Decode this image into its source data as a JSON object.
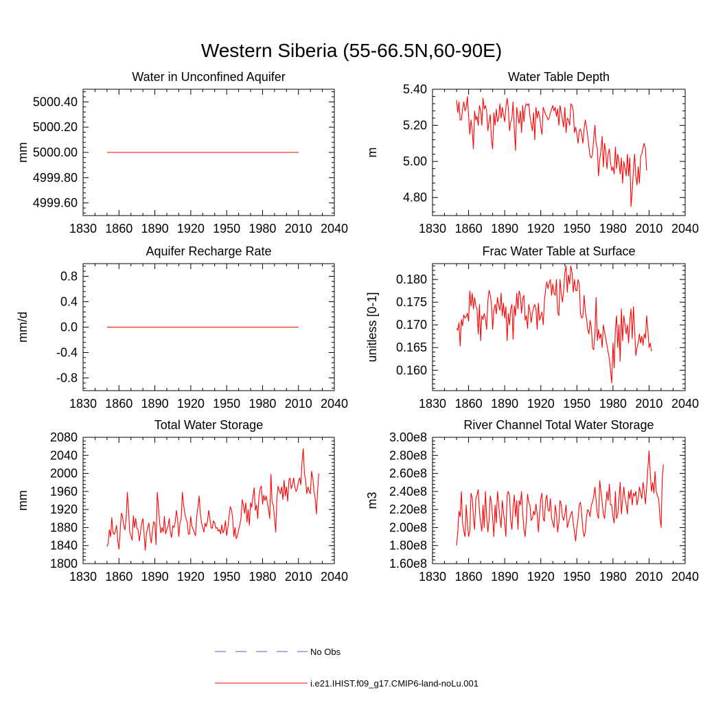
{
  "title": "Western Siberia (55-66.5N,60-90E)",
  "legend": {
    "placement": "bottom-center",
    "items": [
      {
        "label": "No Obs",
        "color": "#5555cc",
        "dash": true
      },
      {
        "label": "i.e21.IHIST.f09_g17.CMIP6-land-noLu.001",
        "color": "#ff0000",
        "dash": false
      }
    ]
  },
  "colors": {
    "series": "#ff0000",
    "obs": "#5555cc",
    "axis": "#000000"
  },
  "chart_data": [
    {
      "type": "line",
      "title": "Water in Unconfined Aquifer",
      "ylabel": "mm",
      "xlim": [
        1830,
        2040
      ],
      "ylim": [
        4999.5,
        5000.5
      ],
      "xticks": [
        1830,
        1860,
        1890,
        1920,
        1950,
        1980,
        2010,
        2040
      ],
      "xtick_labels": [
        "1830",
        "1860",
        "1890",
        "1920",
        "1950",
        "1980",
        "2010",
        "2040"
      ],
      "yticks": [
        4999.6,
        4999.8,
        5000.0,
        5000.2,
        5000.4
      ],
      "ytick_labels": [
        "4999.60",
        "4999.80",
        "5000.00",
        "5000.20",
        "5000.40"
      ],
      "series": [
        {
          "x": [
            1850,
            2010
          ],
          "y": [
            5000.0,
            5000.0
          ]
        }
      ]
    },
    {
      "type": "line",
      "title": "Water Table Depth",
      "ylabel": "m",
      "xlim": [
        1830,
        2040
      ],
      "ylim": [
        4.7,
        5.4
      ],
      "xticks": [
        1830,
        1860,
        1890,
        1920,
        1950,
        1980,
        2010,
        2040
      ],
      "xtick_labels": [
        "1830",
        "1860",
        "1890",
        "1920",
        "1950",
        "1980",
        "2010",
        "2040"
      ],
      "yticks": [
        4.8,
        5.0,
        5.2,
        5.4
      ],
      "ytick_labels": [
        "4.80",
        "5.00",
        "5.20",
        "5.40"
      ],
      "series": [
        {
          "x_start": 1850,
          "y": [
            5.34,
            5.27,
            5.33,
            5.23,
            5.23,
            5.29,
            5.33,
            5.28,
            5.3,
            5.36,
            5.25,
            5.15,
            5.23,
            5.18,
            5.07,
            5.28,
            5.23,
            5.25,
            5.2,
            5.31,
            5.28,
            5.2,
            5.35,
            5.29,
            5.31,
            5.28,
            5.17,
            5.22,
            5.26,
            5.12,
            5.07,
            5.27,
            5.2,
            5.29,
            5.22,
            5.24,
            5.32,
            5.24,
            5.3,
            5.26,
            5.22,
            5.3,
            5.35,
            5.3,
            5.17,
            5.22,
            5.24,
            5.33,
            5.18,
            5.06,
            5.3,
            5.25,
            5.21,
            5.28,
            5.16,
            5.31,
            5.22,
            5.3,
            5.32,
            5.31,
            5.32,
            5.25,
            5.21,
            5.17,
            5.27,
            5.12,
            5.3,
            5.24,
            5.28,
            5.25,
            5.19,
            5.15,
            5.3,
            5.28,
            5.26,
            5.25,
            5.23,
            5.24,
            5.27,
            5.29,
            5.31,
            5.28,
            5.3,
            5.25,
            5.29,
            5.2,
            5.31,
            5.27,
            5.23,
            5.19,
            5.3,
            5.16,
            5.24,
            5.23,
            5.2,
            5.32,
            5.31,
            5.28,
            5.16,
            5.19,
            5.15,
            5.1,
            5.17,
            5.18,
            5.15,
            5.1,
            5.18,
            5.23,
            5.19,
            5.14,
            5.08,
            5.03,
            5.02,
            5.04,
            5.13,
            5.2,
            5.1,
            5.07,
            4.92,
            5.01,
            5.06,
            5.14,
            4.97,
            5.1,
            5.05,
            4.96,
            5.04,
            5.07,
            4.99,
            4.95,
            4.97,
            4.93,
            5.08,
            4.96,
            5.04,
            5.0,
            4.93,
            5.02,
            4.88,
            5.0,
            4.96,
            4.92,
            5.04,
            4.92,
            5.02,
            4.75,
            4.84,
            4.95,
            5.04,
            4.92,
            4.87,
            4.97,
            4.88,
            5.03,
            5.04,
            5.08,
            5.1,
            5.07,
            4.95
          ]
        }
      ]
    },
    {
      "type": "line",
      "title": "Aquifer Recharge Rate",
      "ylabel": "mm/d",
      "xlim": [
        1830,
        2040
      ],
      "ylim": [
        -1.0,
        1.0
      ],
      "xticks": [
        1830,
        1860,
        1890,
        1920,
        1950,
        1980,
        2010,
        2040
      ],
      "xtick_labels": [
        "1830",
        "1860",
        "1890",
        "1920",
        "1950",
        "1980",
        "2010",
        "2040"
      ],
      "yticks": [
        -0.8,
        -0.4,
        0.0,
        0.4,
        0.8
      ],
      "ytick_labels": [
        "-0.8",
        "-0.4",
        "0.0",
        "0.4",
        "0.8"
      ],
      "series": [
        {
          "x": [
            1850,
            2010
          ],
          "y": [
            0.0,
            0.0
          ]
        }
      ]
    },
    {
      "type": "line",
      "title": "Frac Water Table at Surface",
      "ylabel": "unitless [0-1]",
      "xlim": [
        1830,
        2040
      ],
      "ylim": [
        0.1555,
        0.1835
      ],
      "xticks": [
        1830,
        1860,
        1890,
        1920,
        1950,
        1980,
        2010,
        2040
      ],
      "xtick_labels": [
        "1830",
        "1860",
        "1890",
        "1920",
        "1950",
        "1980",
        "2010",
        "2040"
      ],
      "yticks": [
        0.16,
        0.165,
        0.17,
        0.175,
        0.18
      ],
      "ytick_labels": [
        "0.160",
        "0.165",
        "0.170",
        "0.175",
        "0.180"
      ],
      "series": [
        {
          "x_start": 1850,
          "y": [
            0.1692,
            0.1688,
            0.1705,
            0.1653,
            0.1712,
            0.1698,
            0.1722,
            0.1715,
            0.1718,
            0.1726,
            0.1708,
            0.1775,
            0.1741,
            0.177,
            0.1735,
            0.176,
            0.1742,
            0.1735,
            0.168,
            0.1745,
            0.1665,
            0.172,
            0.1712,
            0.1725,
            0.1713,
            0.169,
            0.1752,
            0.1776,
            0.1765,
            0.1745,
            0.169,
            0.1732,
            0.1745,
            0.1724,
            0.176,
            0.1742,
            0.1732,
            0.177,
            0.172,
            0.1748,
            0.1715,
            0.174,
            0.1665,
            0.1725,
            0.17,
            0.1735,
            0.1745,
            0.1668,
            0.1742,
            0.172,
            0.177,
            0.1735,
            0.1775,
            0.1765,
            0.1726,
            0.1758,
            0.1765,
            0.171,
            0.172,
            0.1692,
            0.1745,
            0.173,
            0.1705,
            0.1725,
            0.1738,
            0.1745,
            0.1735,
            0.169,
            0.1748,
            0.171,
            0.172,
            0.1728,
            0.17,
            0.1752,
            0.1778,
            0.1795,
            0.178,
            0.1792,
            0.18,
            0.1765,
            0.179,
            0.177,
            0.1765,
            0.18,
            0.173,
            0.172,
            0.18,
            0.177,
            0.175,
            0.1775,
            0.1815,
            0.183,
            0.1772,
            0.181,
            0.179,
            0.183,
            0.1815,
            0.1772,
            0.18,
            0.1776,
            0.1775,
            0.18,
            0.179,
            0.1725,
            0.1715,
            0.1718,
            0.1765,
            0.173,
            0.1715,
            0.169,
            0.168,
            0.171,
            0.1695,
            0.165,
            0.1645,
            0.168,
            0.176,
            0.1665,
            0.169,
            0.167,
            0.168,
            0.165,
            0.17,
            0.1685,
            0.167,
            0.1655,
            0.164,
            0.1625,
            0.1598,
            0.1572,
            0.166,
            0.1605,
            0.169,
            0.172,
            0.165,
            0.17,
            0.162,
            0.1735,
            0.1665,
            0.172,
            0.17,
            0.168,
            0.17,
            0.166,
            0.171,
            0.1735,
            0.167,
            0.174,
            0.169,
            0.1632,
            0.165,
            0.166,
            0.168,
            0.166,
            0.1675,
            0.1655,
            0.168,
            0.167,
            0.172,
            0.169,
            0.165,
            0.166,
            0.1642
          ]
        }
      ]
    },
    {
      "type": "line",
      "title": "Total Water Storage",
      "ylabel": "mm",
      "xlim": [
        1830,
        2040
      ],
      "ylim": [
        1800,
        2080
      ],
      "xticks": [
        1830,
        1860,
        1890,
        1920,
        1950,
        1980,
        2010,
        2040
      ],
      "xtick_labels": [
        "1830",
        "1860",
        "1890",
        "1920",
        "1950",
        "1980",
        "2010",
        "2040"
      ],
      "yticks": [
        1800,
        1840,
        1880,
        1920,
        1960,
        2000,
        2040,
        2080
      ],
      "ytick_labels": [
        "1800",
        "1840",
        "1880",
        "1920",
        "1960",
        "2000",
        "2040",
        "2080"
      ],
      "series": [
        {
          "x_start": 1850,
          "y": [
            1838,
            1845,
            1875,
            1860,
            1902,
            1868,
            1865,
            1872,
            1885,
            1850,
            1832,
            1872,
            1912,
            1905,
            1885,
            1875,
            1900,
            1958,
            1920,
            1870,
            1862,
            1852,
            1906,
            1880,
            1900,
            1878,
            1876,
            1850,
            1870,
            1890,
            1900,
            1865,
            1830,
            1866,
            1880,
            1890,
            1862,
            1846,
            1872,
            1893,
            1890,
            1842,
            1958,
            1928,
            1892,
            1868,
            1880,
            1870,
            1905,
            1866,
            1875,
            1883,
            1900,
            1868,
            1858,
            1884,
            1880,
            1892,
            1918,
            1898,
            1860,
            1890,
            1900,
            1958,
            1930,
            1912,
            1900,
            1892,
            1865,
            1866,
            1905,
            1883,
            1876,
            1868,
            1862,
            1905,
            1925,
            1950,
            1912,
            1890,
            1880,
            1870,
            1890,
            1882,
            1895,
            1918,
            1900,
            1880,
            1878,
            1895,
            1890,
            1878,
            1880,
            1872,
            1876,
            1866,
            1886,
            1868,
            1876,
            1895,
            1862,
            1880,
            1904,
            1926,
            1920,
            1902,
            1860,
            1880,
            1855,
            1862,
            1875,
            1885,
            1900,
            1942,
            1930,
            1912,
            1935,
            1892,
            1920,
            1885,
            1935,
            1925,
            1950,
            1968,
            1918,
            1930,
            1900,
            1948,
            1966,
            1972,
            1932,
            1952,
            1940,
            1950,
            1935,
            1920,
            1900,
            1998,
            1935,
            1930,
            1902,
            1870,
            1945,
            1972,
            1962,
            1955,
            1970,
            1942,
            1985,
            1950,
            1970,
            1938,
            1985,
            1990,
            1966,
            1975,
            1990,
            1970,
            1960,
            1965,
            1982,
            1990,
            1975,
            2025,
            2055,
            2000,
            1985,
            1955,
            1970,
            1960,
            1955,
            2005,
            1990,
            1960,
            1945,
            1910,
            1960,
            2000
          ]
        }
      ]
    },
    {
      "type": "line",
      "title": "River Channel Total Water Storage",
      "ylabel": "m3",
      "xlim": [
        1830,
        2040
      ],
      "ylim": [
        160000000,
        300000000
      ],
      "xticks": [
        1830,
        1860,
        1890,
        1920,
        1950,
        1980,
        2010,
        2040
      ],
      "xtick_labels": [
        "1830",
        "1860",
        "1890",
        "1920",
        "1950",
        "1980",
        "2010",
        "2040"
      ],
      "yticks": [
        160000000,
        180000000,
        200000000,
        220000000,
        240000000,
        260000000,
        280000000,
        300000000
      ],
      "ytick_labels": [
        "1.60e8",
        "1.80e8",
        "2.00e8",
        "2.20e8",
        "2.40e8",
        "2.60e8",
        "2.80e8",
        "3.00e8"
      ],
      "series": [
        {
          "x_start": 1850,
          "y": [
            180000000,
            195000000,
            218000000,
            212000000,
            240000000,
            205000000,
            196000000,
            190000000,
            225000000,
            205000000,
            190000000,
            196000000,
            238000000,
            233000000,
            212000000,
            198000000,
            232000000,
            236000000,
            242000000,
            218000000,
            205000000,
            196000000,
            225000000,
            200000000,
            240000000,
            212000000,
            195000000,
            208000000,
            235000000,
            228000000,
            210000000,
            190000000,
            225000000,
            205000000,
            240000000,
            226000000,
            210000000,
            200000000,
            230000000,
            217000000,
            205000000,
            190000000,
            236000000,
            240000000,
            235000000,
            208000000,
            198000000,
            222000000,
            236000000,
            212000000,
            230000000,
            198000000,
            230000000,
            225000000,
            240000000,
            215000000,
            198000000,
            190000000,
            208000000,
            237000000,
            228000000,
            225000000,
            208000000,
            210000000,
            218000000,
            214000000,
            226000000,
            215000000,
            195000000,
            215000000,
            232000000,
            238000000,
            210000000,
            207000000,
            230000000,
            236000000,
            220000000,
            218000000,
            232000000,
            210000000,
            205000000,
            200000000,
            225000000,
            215000000,
            195000000,
            205000000,
            230000000,
            226000000,
            212000000,
            208000000,
            215000000,
            225000000,
            200000000,
            205000000,
            210000000,
            215000000,
            218000000,
            205000000,
            195000000,
            185000000,
            200000000,
            210000000,
            225000000,
            228000000,
            215000000,
            198000000,
            190000000,
            195000000,
            212000000,
            220000000,
            218000000,
            212000000,
            225000000,
            228000000,
            235000000,
            245000000,
            230000000,
            215000000,
            210000000,
            252000000,
            240000000,
            228000000,
            215000000,
            210000000,
            225000000,
            240000000,
            230000000,
            248000000,
            225000000,
            225000000,
            212000000,
            205000000,
            240000000,
            210000000,
            215000000,
            232000000,
            250000000,
            215000000,
            230000000,
            245000000,
            232000000,
            225000000,
            215000000,
            240000000,
            232000000,
            242000000,
            225000000,
            238000000,
            235000000,
            240000000,
            225000000,
            232000000,
            245000000,
            238000000,
            232000000,
            250000000,
            240000000,
            226000000,
            245000000,
            265000000,
            285000000,
            260000000,
            240000000,
            250000000,
            238000000,
            262000000,
            240000000,
            235000000,
            232000000,
            212000000,
            200000000,
            255000000,
            270000000
          ]
        }
      ]
    }
  ]
}
